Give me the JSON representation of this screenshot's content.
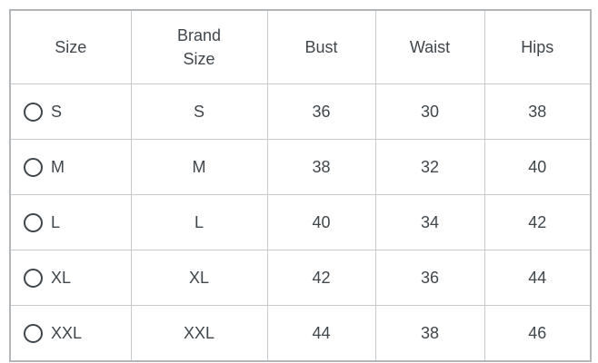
{
  "size_chart": {
    "columns": {
      "size": "Size",
      "brand_size": "Brand Size",
      "bust": "Bust",
      "waist": "Waist",
      "hips": "Hips"
    },
    "rows": [
      {
        "size": "S",
        "brand_size": "S",
        "bust": "36",
        "waist": "30",
        "hips": "38",
        "selected": false
      },
      {
        "size": "M",
        "brand_size": "M",
        "bust": "38",
        "waist": "32",
        "hips": "40",
        "selected": false
      },
      {
        "size": "L",
        "brand_size": "L",
        "bust": "40",
        "waist": "34",
        "hips": "42",
        "selected": false
      },
      {
        "size": "XL",
        "brand_size": "XL",
        "bust": "42",
        "waist": "36",
        "hips": "44",
        "selected": false
      },
      {
        "size": "XXL",
        "brand_size": "XXL",
        "bust": "44",
        "waist": "38",
        "hips": "46",
        "selected": false
      }
    ],
    "colors": {
      "text": "#40474c",
      "border_outer": "#b2b6b8",
      "border_inner": "#c6cacc",
      "background": "#ffffff"
    }
  }
}
